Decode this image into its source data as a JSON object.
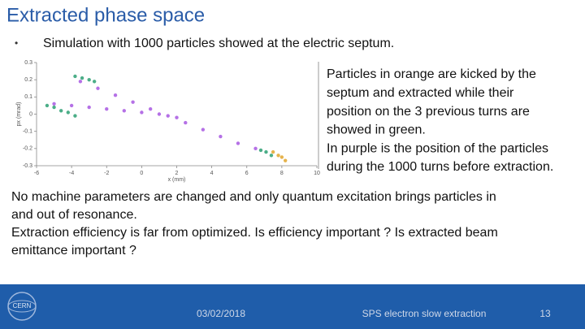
{
  "header": {
    "title": "Extracted phase space"
  },
  "bullet": "Simulation with 1000 particles showed at the electric septum.",
  "side_text": [
    "Particles in orange are kicked by the",
    "septum and extracted while their",
    "position on the 3 previous turns are",
    "showed in green.",
    "In purple is the position of the particles",
    "during the 1000 turns before extraction."
  ],
  "body_text": [
    "No machine parameters are changed and only quantum excitation brings particles in",
    "and out of resonance.",
    "Extraction efficiency is far from optimized. Is efficiency important ? Is extracted beam",
    "emittance important ?"
  ],
  "footer": {
    "logo": "CERN",
    "date": "03/02/2018",
    "title": "SPS electron slow extraction",
    "page": "13"
  },
  "chart_data": {
    "type": "scatter",
    "x_label": "x (mm)",
    "y_label": "px (mrad)",
    "xlim": [
      -6,
      10
    ],
    "ylim": [
      -0.3,
      0.3
    ],
    "xticks": [
      -6,
      -4,
      -2,
      0,
      2,
      4,
      6,
      8,
      10
    ],
    "yticks": [
      0.3,
      0.2,
      0.1,
      0,
      -0.1,
      -0.2,
      -0.3
    ],
    "series": [
      {
        "color": "#a24ee0",
        "x": [
          -3.5,
          -2.5,
          -1.5,
          -0.5,
          0.5,
          1.5,
          2.5,
          3.5,
          4.5,
          5.5,
          6.5,
          -5,
          -4,
          -3,
          -2,
          -1,
          0,
          1,
          2
        ],
        "y": [
          0.19,
          0.15,
          0.11,
          0.07,
          0.03,
          -0.01,
          -0.05,
          -0.09,
          -0.13,
          -0.17,
          -0.2,
          0.06,
          0.05,
          0.04,
          0.03,
          0.02,
          0.01,
          0.0,
          -0.02
        ]
      },
      {
        "color": "#1f9a6a",
        "x": [
          -3.8,
          -3.4,
          -3.0,
          -2.7,
          -5.4,
          -5.0,
          -4.6,
          -4.2,
          -3.8,
          6.8,
          7.1,
          7.4
        ],
        "y": [
          0.22,
          0.21,
          0.2,
          0.19,
          0.05,
          0.04,
          0.02,
          0.01,
          -0.01,
          -0.21,
          -0.22,
          -0.24
        ]
      },
      {
        "color": "#e0a020",
        "x": [
          7.5,
          7.8,
          8.0,
          8.2
        ],
        "y": [
          -0.22,
          -0.24,
          -0.25,
          -0.27
        ]
      }
    ]
  }
}
